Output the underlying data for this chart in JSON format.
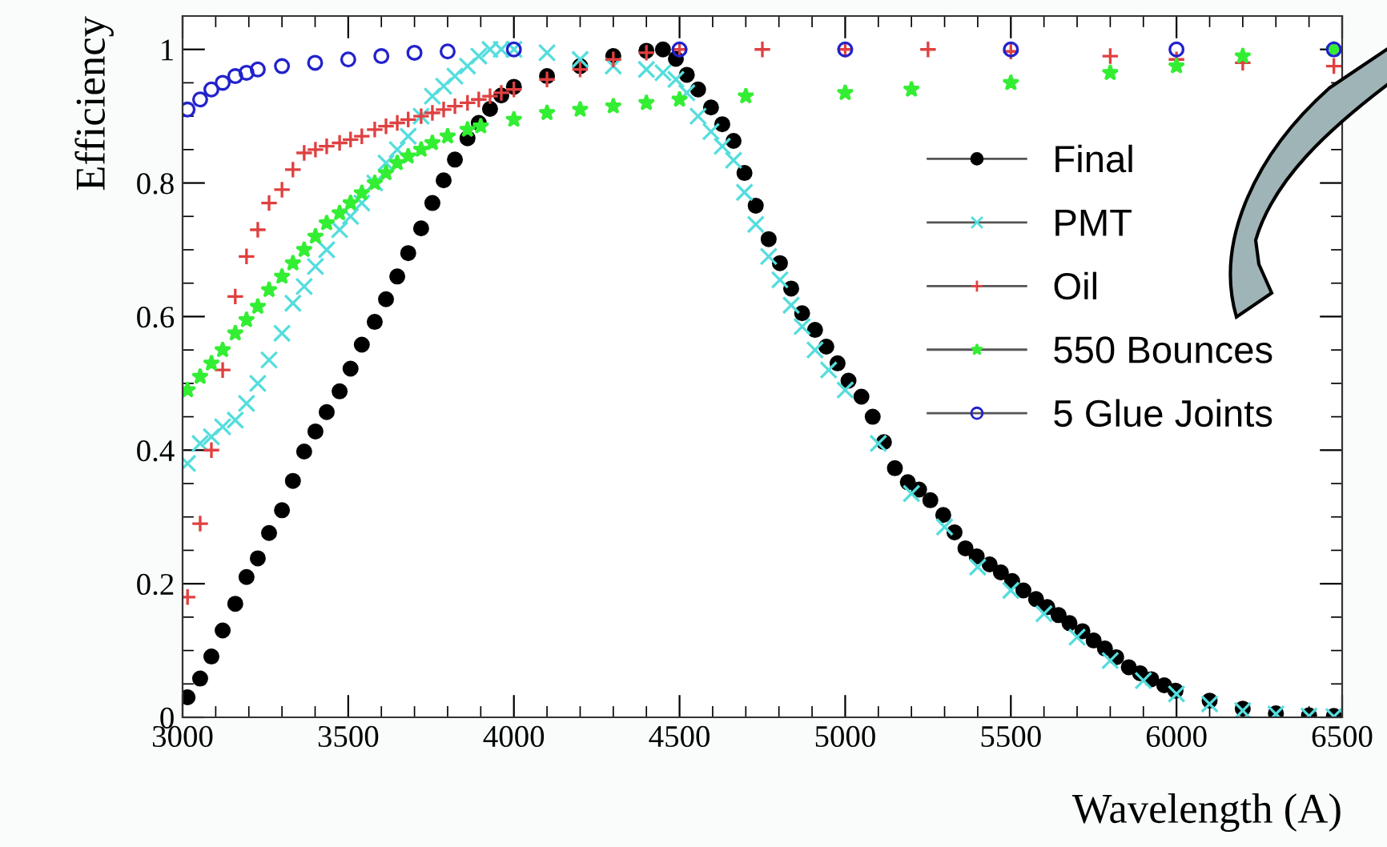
{
  "chart_data": {
    "type": "scatter",
    "xlabel": "Wavelength (A)",
    "ylabel": "Efficiency",
    "xlim": [
      3000,
      6500
    ],
    "ylim": [
      0,
      1.05
    ],
    "xticks": [
      3000,
      3500,
      4000,
      4500,
      5000,
      5500,
      6000,
      6500
    ],
    "yticks": [
      0,
      0.2,
      0.4,
      0.6,
      0.8,
      1
    ],
    "grid": false,
    "legend": "right",
    "line_style": "none",
    "series": [
      {
        "name": "Final",
        "color": "#000000",
        "marker": "circle",
        "x": [
          3015,
          3053,
          3087,
          3121,
          3159,
          3193,
          3227,
          3261,
          3300,
          3333,
          3367,
          3401,
          3435,
          3474,
          3507,
          3541,
          3580,
          3614,
          3648,
          3681,
          3720,
          3754,
          3788,
          3822,
          3860,
          3894,
          3928,
          3962,
          4000,
          4100,
          4200,
          4300,
          4400,
          4450,
          4489,
          4522,
          4556,
          4595,
          4629,
          4663,
          4696,
          4730,
          4769,
          4803,
          4837,
          4870,
          4909,
          4943,
          4977,
          5010,
          5049,
          5083,
          5117,
          5150,
          5189,
          5223,
          5257,
          5296,
          5330,
          5363,
          5397,
          5436,
          5470,
          5504,
          5538,
          5576,
          5610,
          5644,
          5677,
          5716,
          5750,
          5784,
          5818,
          5856,
          5890,
          5924,
          5963,
          5997,
          6100,
          6200,
          6300,
          6400,
          6475
        ],
        "values": [
          0.03,
          0.058,
          0.091,
          0.13,
          0.17,
          0.21,
          0.238,
          0.276,
          0.31,
          0.354,
          0.398,
          0.428,
          0.457,
          0.488,
          0.522,
          0.558,
          0.592,
          0.626,
          0.66,
          0.695,
          0.732,
          0.77,
          0.804,
          0.835,
          0.867,
          0.89,
          0.911,
          0.931,
          0.944,
          0.96,
          0.975,
          0.99,
          0.998,
          1.0,
          0.986,
          0.962,
          0.94,
          0.913,
          0.888,
          0.863,
          0.815,
          0.766,
          0.716,
          0.68,
          0.642,
          0.605,
          0.58,
          0.555,
          0.53,
          0.504,
          0.48,
          0.45,
          0.412,
          0.373,
          0.352,
          0.341,
          0.325,
          0.303,
          0.277,
          0.253,
          0.241,
          0.229,
          0.217,
          0.204,
          0.19,
          0.177,
          0.165,
          0.153,
          0.141,
          0.129,
          0.115,
          0.103,
          0.09,
          0.075,
          0.066,
          0.057,
          0.048,
          0.04,
          0.025,
          0.013,
          0.006,
          0.003,
          0.002
        ]
      },
      {
        "name": "PMT",
        "color": "#55dddd",
        "marker": "cross",
        "x": [
          3015,
          3053,
          3087,
          3121,
          3159,
          3193,
          3227,
          3261,
          3300,
          3333,
          3367,
          3401,
          3435,
          3474,
          3507,
          3541,
          3580,
          3614,
          3648,
          3681,
          3720,
          3754,
          3788,
          3822,
          3860,
          3894,
          3928,
          3962,
          4000,
          4100,
          4200,
          4300,
          4400,
          4450,
          4489,
          4522,
          4556,
          4595,
          4629,
          4663,
          4696,
          4730,
          4769,
          4803,
          4837,
          4870,
          4909,
          4950,
          5000,
          5100,
          5200,
          5300,
          5400,
          5500,
          5600,
          5700,
          5800,
          5900,
          6000,
          6100,
          6200,
          6300,
          6400,
          6475
        ],
        "values": [
          0.38,
          0.41,
          0.42,
          0.435,
          0.445,
          0.47,
          0.5,
          0.535,
          0.575,
          0.62,
          0.645,
          0.675,
          0.7,
          0.73,
          0.75,
          0.77,
          0.8,
          0.83,
          0.85,
          0.87,
          0.9,
          0.93,
          0.945,
          0.96,
          0.975,
          0.99,
          1.0,
          1.0,
          1.0,
          0.995,
          0.985,
          0.975,
          0.97,
          0.965,
          0.955,
          0.935,
          0.9,
          0.877,
          0.855,
          0.834,
          0.786,
          0.738,
          0.69,
          0.655,
          0.617,
          0.585,
          0.55,
          0.52,
          0.49,
          0.41,
          0.335,
          0.285,
          0.225,
          0.19,
          0.155,
          0.12,
          0.085,
          0.055,
          0.035,
          0.02,
          0.01,
          0.005,
          0.002,
          0.001
        ]
      },
      {
        "name": "Oil",
        "color": "#e04040",
        "marker": "plus",
        "x": [
          3015,
          3053,
          3087,
          3121,
          3159,
          3193,
          3227,
          3261,
          3300,
          3333,
          3367,
          3401,
          3435,
          3474,
          3507,
          3541,
          3580,
          3614,
          3648,
          3681,
          3720,
          3754,
          3788,
          3822,
          3860,
          3894,
          3928,
          3962,
          4000,
          4100,
          4200,
          4300,
          4400,
          4500,
          4750,
          5000,
          5250,
          5500,
          5800,
          6000,
          6200,
          6475
        ],
        "values": [
          0.18,
          0.29,
          0.4,
          0.52,
          0.63,
          0.69,
          0.73,
          0.77,
          0.79,
          0.82,
          0.845,
          0.85,
          0.855,
          0.86,
          0.865,
          0.87,
          0.88,
          0.885,
          0.89,
          0.895,
          0.9,
          0.905,
          0.91,
          0.915,
          0.92,
          0.925,
          0.93,
          0.935,
          0.94,
          0.955,
          0.97,
          0.985,
          0.995,
          1.0,
          1.0,
          1.0,
          1.0,
          0.997,
          0.99,
          0.985,
          0.98,
          0.975
        ]
      },
      {
        "name": "550 Bounces",
        "color": "#33ee33",
        "marker": "star",
        "x": [
          3015,
          3053,
          3087,
          3121,
          3159,
          3193,
          3227,
          3261,
          3300,
          3333,
          3367,
          3401,
          3435,
          3474,
          3507,
          3541,
          3580,
          3614,
          3648,
          3681,
          3720,
          3754,
          3800,
          3860,
          3900,
          4000,
          4100,
          4200,
          4300,
          4400,
          4500,
          4700,
          5000,
          5200,
          5500,
          5800,
          6000,
          6200,
          6475
        ],
        "values": [
          0.49,
          0.51,
          0.53,
          0.55,
          0.575,
          0.595,
          0.615,
          0.64,
          0.66,
          0.68,
          0.7,
          0.72,
          0.74,
          0.755,
          0.77,
          0.785,
          0.8,
          0.815,
          0.83,
          0.84,
          0.85,
          0.86,
          0.87,
          0.88,
          0.885,
          0.895,
          0.905,
          0.91,
          0.915,
          0.92,
          0.925,
          0.93,
          0.935,
          0.94,
          0.95,
          0.965,
          0.975,
          0.99,
          1.0
        ]
      },
      {
        "name": "5 Glue Joints",
        "color": "#2222cc",
        "marker": "open_circle",
        "x": [
          3015,
          3053,
          3087,
          3121,
          3159,
          3193,
          3227,
          3300,
          3400,
          3500,
          3600,
          3700,
          3800,
          4000,
          4500,
          5000,
          5500,
          6000,
          6475
        ],
        "values": [
          0.91,
          0.925,
          0.94,
          0.95,
          0.96,
          0.965,
          0.97,
          0.975,
          0.98,
          0.985,
          0.99,
          0.995,
          0.997,
          1.0,
          1.0,
          1.0,
          1.0,
          1.0,
          1.0
        ]
      }
    ]
  }
}
